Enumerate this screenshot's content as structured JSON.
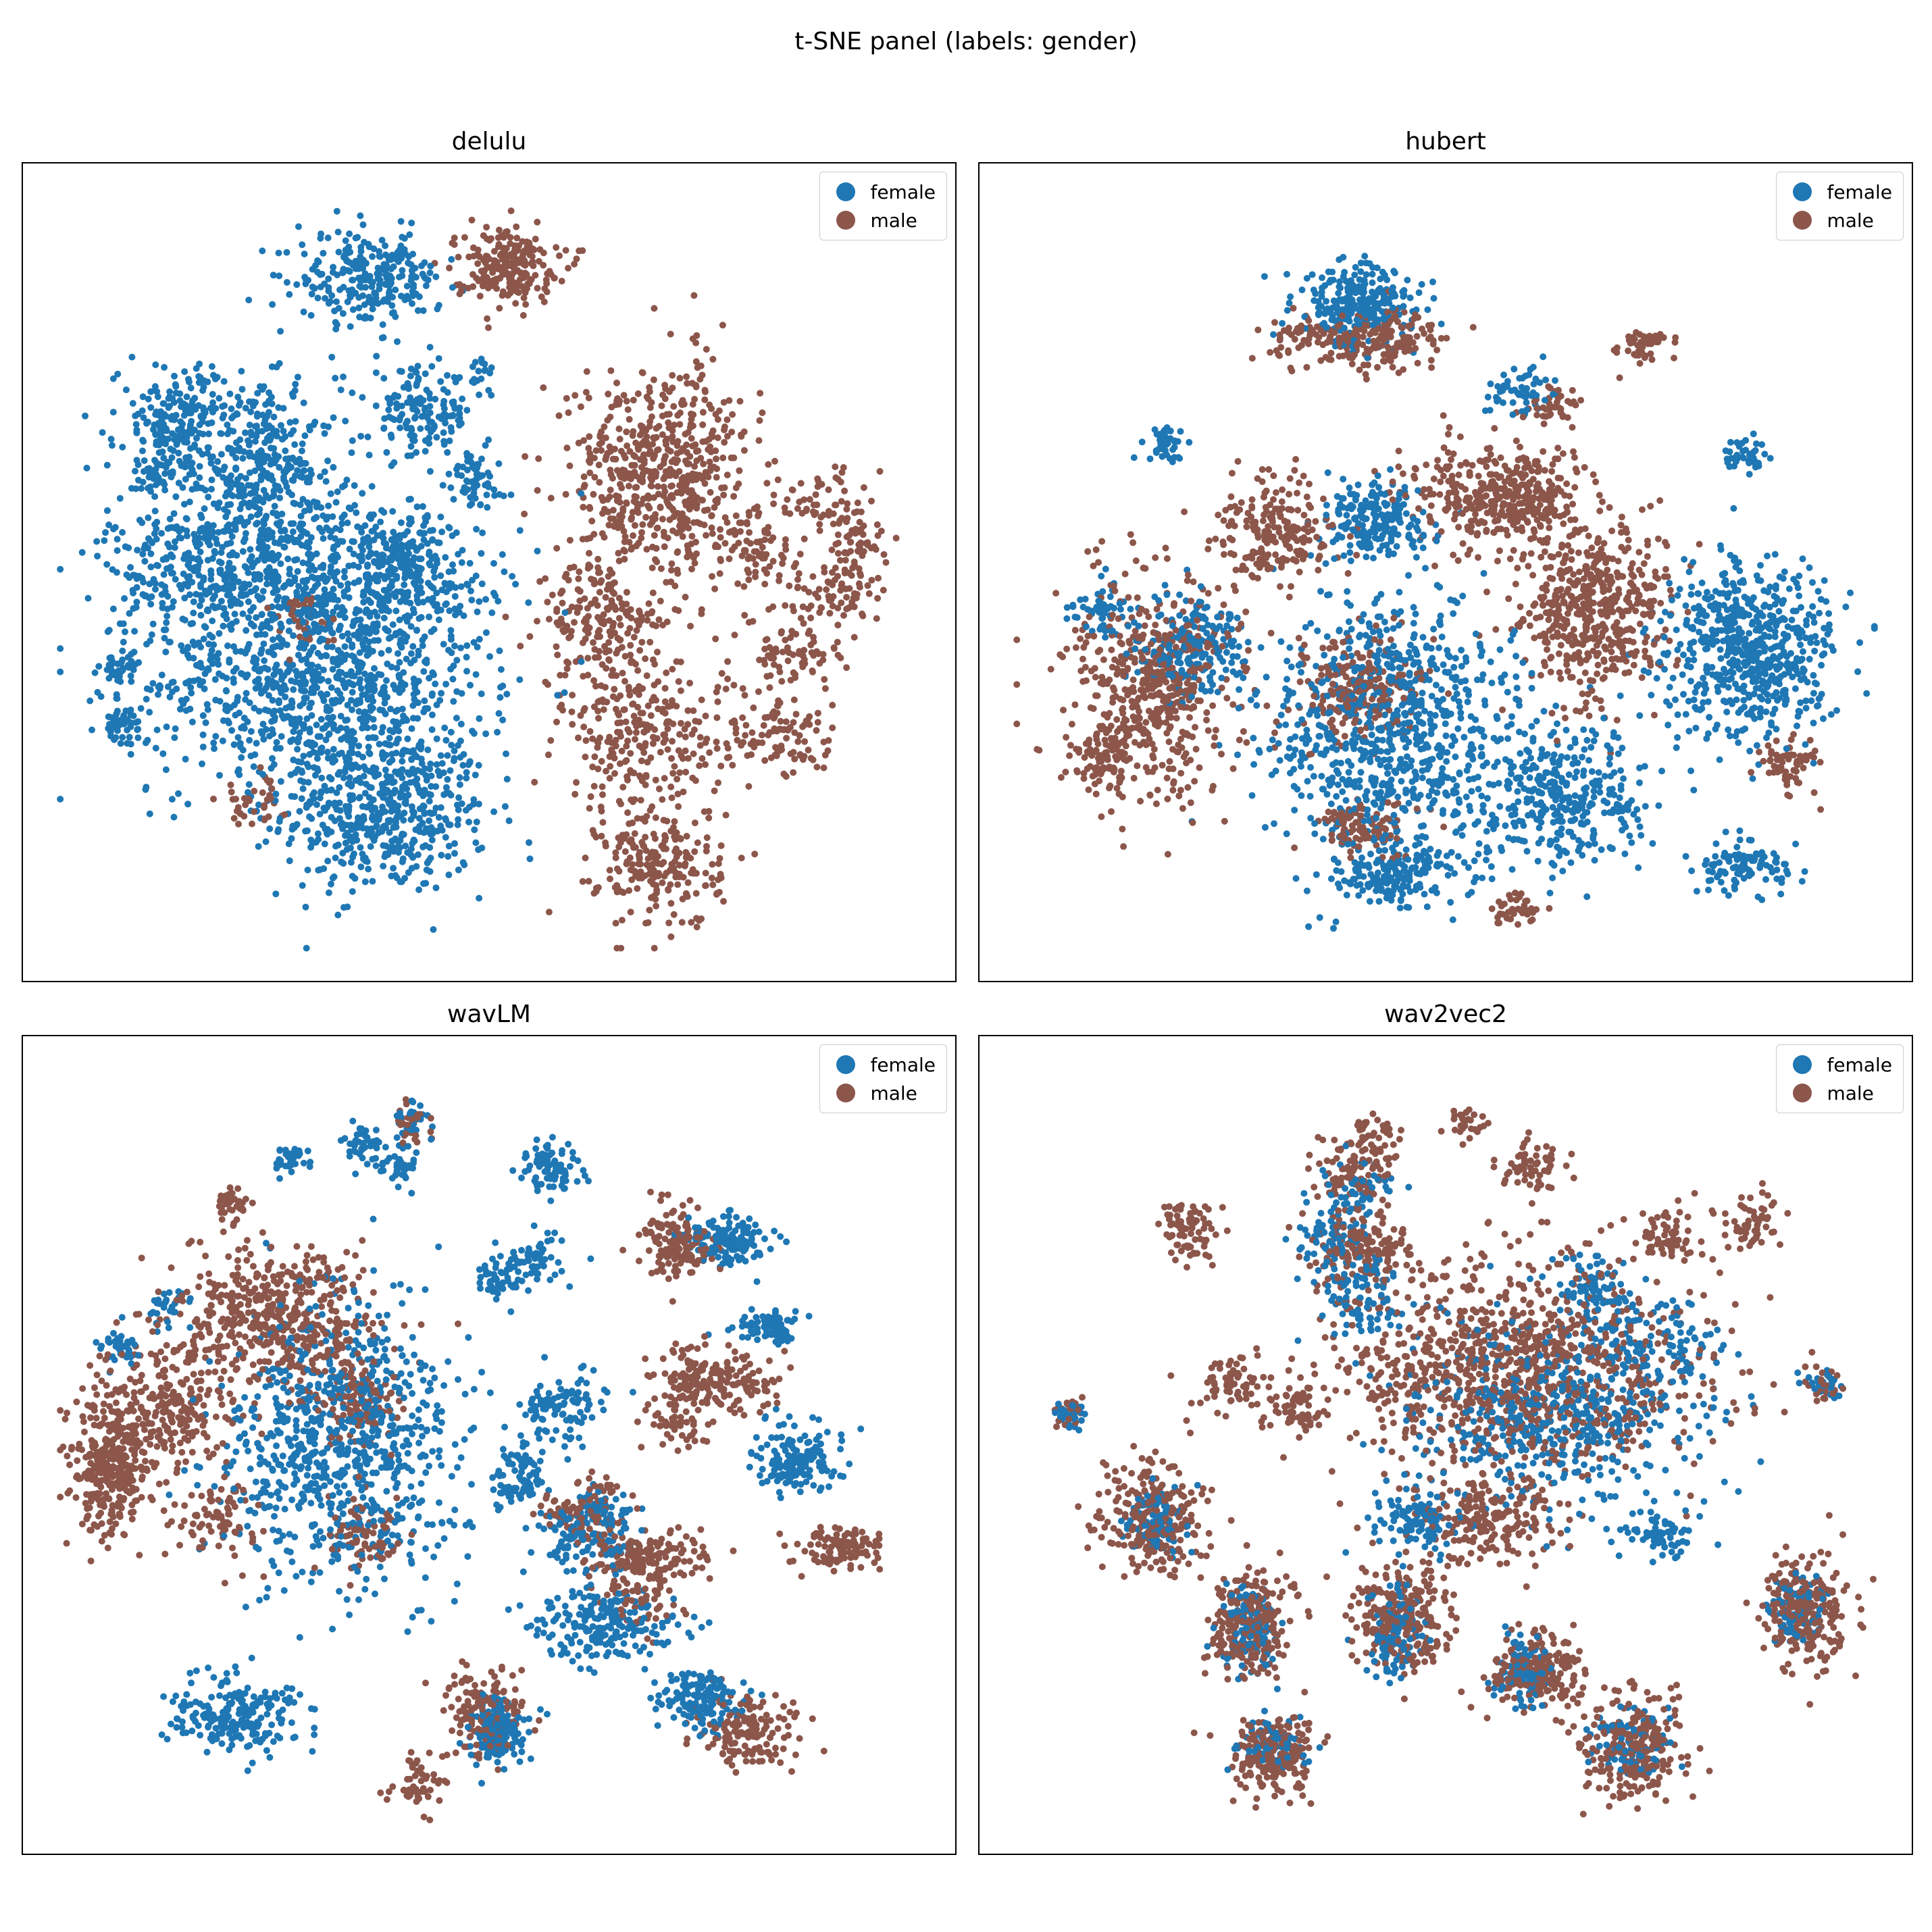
{
  "figure": {
    "suptitle": "t-SNE panel (labels: gender)"
  },
  "colors": {
    "female": "#1f77b4",
    "male": "#8c564b"
  },
  "chart_data": [
    {
      "type": "scatter",
      "title": "delulu",
      "xlabel": "",
      "ylabel": "",
      "xlim": [
        0,
        100
      ],
      "ylim": [
        0,
        100
      ],
      "grid": false,
      "ticks": false,
      "legend": {
        "placement": "top-right",
        "entries": [
          "female",
          "male"
        ]
      },
      "series": [
        {
          "name": "female",
          "color": "#1f77b4",
          "clusters": [
            [
              38,
              18,
              10,
              9,
              500
            ],
            [
              30,
              35,
              16,
              12,
              900
            ],
            [
              20,
              52,
              12,
              11,
              600
            ],
            [
              39,
              50,
              10,
              8,
              400
            ],
            [
              14,
              70,
              6,
              6,
              220
            ],
            [
              24,
              65,
              7,
              8,
              260
            ],
            [
              42,
              71,
              5,
              5,
              150
            ],
            [
              36,
              89,
              7,
              5,
              260
            ],
            [
              7,
              30,
              2,
              2,
              40
            ],
            [
              7,
              37,
              2,
              2,
              40
            ],
            [
              11,
              63,
              1.5,
              2,
              25
            ],
            [
              49,
              76,
              1.5,
              2,
              20
            ],
            [
              48,
              63,
              3,
              4,
              60
            ]
          ]
        },
        {
          "name": "male",
          "color": "#8c564b",
          "clusters": [
            [
              70,
              11,
              6,
              7,
              220
            ],
            [
              68,
              28,
              8,
              8,
              250
            ],
            [
              63,
              43,
              6,
              7,
              180
            ],
            [
              70,
              63,
              9,
              12,
              600
            ],
            [
              84,
              28,
              5,
              5,
              100
            ],
            [
              86,
              40,
              5,
              6,
              90
            ],
            [
              91,
              47,
              5,
              4,
              70
            ],
            [
              81,
              53,
              4,
              4,
              60
            ],
            [
              93,
              54,
              3,
              3,
              50
            ],
            [
              89,
              59,
              4,
              4,
              60
            ],
            [
              52,
              91,
              5,
              4,
              220
            ],
            [
              22,
              20,
              3,
              3,
              40
            ],
            [
              28,
              44,
              3,
              3,
              40
            ]
          ]
        }
      ]
    },
    {
      "type": "scatter",
      "title": "hubert",
      "xlabel": "",
      "ylabel": "",
      "xlim": [
        0,
        100
      ],
      "ylim": [
        0,
        100
      ],
      "grid": false,
      "ticks": false,
      "legend": {
        "placement": "top-right",
        "entries": [
          "female",
          "male"
        ]
      },
      "series": [
        {
          "name": "female",
          "color": "#1f77b4",
          "clusters": [
            [
              44,
              30,
              12,
              14,
              800
            ],
            [
              63,
              20,
              9,
              8,
              350
            ],
            [
              45,
              10,
              7,
              4,
              150
            ],
            [
              85,
              40,
              8,
              10,
              600
            ],
            [
              42,
              57,
              5,
              4,
              200
            ],
            [
              20,
              40,
              5,
              6,
              200
            ],
            [
              40,
              86,
              6,
              4,
              250
            ],
            [
              85,
              11,
              5,
              3,
              100
            ],
            [
              43,
              9,
              3,
              2,
              40
            ],
            [
              59,
              74,
              4,
              3,
              60
            ],
            [
              17,
              67,
              2,
              2,
              40
            ],
            [
              85,
              66,
              2,
              2,
              40
            ],
            [
              10,
              45,
              3,
              3,
              60
            ]
          ]
        },
        {
          "name": "male",
          "color": "#8c564b",
          "clusters": [
            [
              16,
              35,
              8,
              12,
              500
            ],
            [
              40,
              35,
              6,
              6,
              200
            ],
            [
              67,
              45,
              7,
              10,
              500
            ],
            [
              55,
              60,
              8,
              6,
              300
            ],
            [
              30,
              55,
              6,
              6,
              200
            ],
            [
              40,
              81,
              8,
              3,
              200
            ],
            [
              44,
              82,
              3,
              4,
              40
            ],
            [
              10,
              25,
              3,
              3,
              80
            ],
            [
              90,
              25,
              3,
              3,
              60
            ],
            [
              60,
              60,
              4,
              4,
              100
            ],
            [
              40,
              16,
              5,
              3,
              100
            ],
            [
              73,
              80,
              3,
              2,
              50
            ],
            [
              63,
              72,
              3,
              2,
              40
            ],
            [
              58,
              5,
              3,
              2,
              40
            ]
          ]
        }
      ]
    },
    {
      "type": "scatter",
      "title": "wavLM",
      "xlabel": "",
      "ylabel": "",
      "xlim": [
        0,
        100
      ],
      "ylim": [
        0,
        100
      ],
      "grid": false,
      "ticks": false,
      "legend": {
        "placement": "top-right",
        "entries": [
          "female",
          "male"
        ]
      },
      "series": [
        {
          "name": "female",
          "color": "#1f77b4",
          "clusters": [
            [
              33,
              50,
              12,
              16,
              800
            ],
            [
              20,
              14,
              6,
              4,
              200
            ],
            [
              51,
              12,
              3,
              4,
              150
            ],
            [
              63,
              26,
              7,
              4,
              200
            ],
            [
              75,
              16,
              4,
              3,
              150
            ],
            [
              86,
              48,
              4,
              4,
              150
            ],
            [
              78,
              77,
              4,
              3,
              150
            ],
            [
              58,
              55,
              4,
              4,
              100
            ],
            [
              61,
              38,
              5,
              4,
              120
            ],
            [
              57,
              87,
              3,
              3,
              80
            ],
            [
              55,
              75,
              3,
              3,
              60
            ],
            [
              7,
              63,
              2,
              2,
              40
            ],
            [
              13,
              68,
              2,
              2,
              30
            ],
            [
              40,
              87,
              2,
              2,
              40
            ],
            [
              35,
              90,
              2,
              2,
              40
            ],
            [
              27,
              88,
              2,
              2,
              30
            ],
            [
              54,
              47,
              2,
              3,
              40
            ],
            [
              53,
              44,
              3,
              2,
              40
            ],
            [
              51,
              72,
              2,
              2,
              40
            ],
            [
              83,
              66,
              3,
              2,
              80
            ],
            [
              63,
              41,
              2,
              2,
              30
            ],
            [
              41,
              93,
              2,
              2,
              30
            ]
          ]
        },
        {
          "name": "male",
          "color": "#8c564b",
          "clusters": [
            [
              6,
              48,
              4,
              8,
              350
            ],
            [
              25,
              67,
              10,
              8,
              500
            ],
            [
              13,
              55,
              6,
              6,
              200
            ],
            [
              49,
              14,
              4,
              5,
              150
            ],
            [
              80,
              12,
              5,
              4,
              150
            ],
            [
              68,
              35,
              6,
              3,
              150
            ],
            [
              71,
              78,
              3,
              4,
              80
            ],
            [
              73,
              76,
              3,
              3,
              80
            ],
            [
              74,
              59,
              4,
              3,
              100
            ],
            [
              61,
              41,
              4,
              3,
              100
            ],
            [
              79,
              58,
              4,
              3,
              80
            ],
            [
              91,
              36,
              4,
              3,
              100
            ],
            [
              35,
              55,
              4,
              5,
              100
            ],
            [
              36,
              38,
              4,
              4,
              80
            ],
            [
              18,
              40,
              4,
              5,
              80
            ],
            [
              72,
              53,
              3,
              3,
              60
            ],
            [
              68,
              30,
              4,
              4,
              60
            ],
            [
              20,
              82,
              2,
              2,
              40
            ],
            [
              41,
              93,
              2,
              2,
              30
            ],
            [
              42,
              5,
              3,
              3,
              50
            ]
          ]
        }
      ]
    },
    {
      "type": "scatter",
      "title": "wav2vec2",
      "xlabel": "",
      "ylabel": "",
      "xlim": [
        0,
        100
      ],
      "ylim": [
        0,
        100
      ],
      "grid": false,
      "ticks": false,
      "legend": {
        "placement": "top-right",
        "entries": [
          "female",
          "male"
        ]
      },
      "series": [
        {
          "name": "female",
          "color": "#1f77b4",
          "clusters": [
            [
              30,
              10,
              3,
              3,
              80
            ],
            [
              72,
              11,
              4,
              4,
              80
            ],
            [
              27,
              25,
              3,
              5,
              100
            ],
            [
              44,
              25,
              3,
              5,
              100
            ],
            [
              59,
              20,
              3,
              4,
              80
            ],
            [
              91,
              28,
              3,
              4,
              80
            ],
            [
              16,
              40,
              3,
              4,
              80
            ],
            [
              47,
              40,
              5,
              4,
              100
            ],
            [
              63,
              54,
              14,
              10,
              500
            ],
            [
              75,
              64,
              6,
              5,
              100
            ],
            [
              40,
              70,
              4,
              5,
              100
            ],
            [
              36,
              78,
              3,
              3,
              60
            ],
            [
              40,
              84,
              3,
              3,
              50
            ],
            [
              6,
              54,
              1.5,
              2,
              30
            ],
            [
              94,
              58,
              2,
              2,
              30
            ],
            [
              75,
              38,
              3,
              3,
              60
            ],
            [
              68,
              70,
              4,
              4,
              80
            ]
          ]
        },
        {
          "name": "male",
          "color": "#8c564b",
          "clusters": [
            [
              30,
              9,
              4,
              4,
              200
            ],
            [
              72,
              10,
              5,
              6,
              250
            ],
            [
              27,
              26,
              4,
              6,
              250
            ],
            [
              45,
              27,
              5,
              6,
              250
            ],
            [
              60,
              20,
              5,
              4,
              200
            ],
            [
              92,
              28,
              4,
              6,
              250
            ],
            [
              16,
              40,
              5,
              6,
              250
            ],
            [
              55,
              40,
              7,
              5,
              200
            ],
            [
              58,
              60,
              17,
              12,
              1000
            ],
            [
              40,
              76,
              5,
              4,
              150
            ],
            [
              20,
              78,
              3,
              3,
              80
            ],
            [
              40,
              86,
              4,
              4,
              100
            ],
            [
              25,
              58,
              3,
              3,
              60
            ],
            [
              33,
              55,
              3,
              3,
              60
            ],
            [
              86,
              80,
              3,
              3,
              60
            ],
            [
              76,
              78,
              3,
              3,
              60
            ],
            [
              60,
              87,
              3,
              3,
              60
            ],
            [
              6,
              54,
              1.5,
              2,
              20
            ],
            [
              94,
              58,
              2,
              2,
              30
            ],
            [
              42,
              92,
              2,
              2,
              30
            ],
            [
              53,
              93,
              2,
              2,
              30
            ]
          ]
        }
      ]
    }
  ]
}
